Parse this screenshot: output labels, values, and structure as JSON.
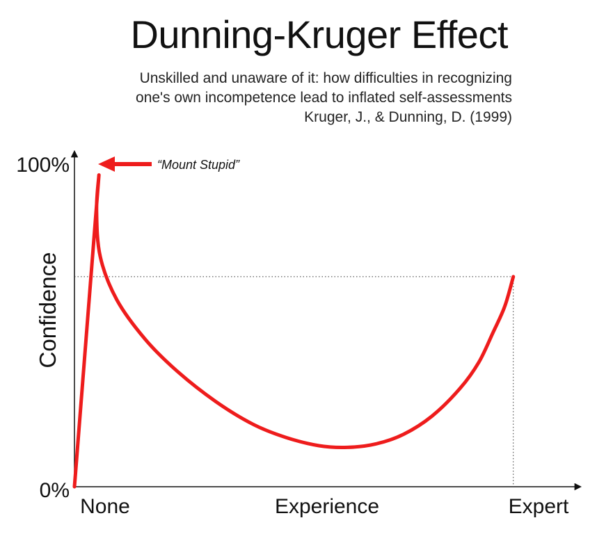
{
  "chart_data": {
    "type": "line",
    "title": "Dunning-Kruger Effect",
    "subtitle_lines": [
      "Unskilled and unaware of it: how difficulties in recognizing",
      "one's own incompetence lead to inflated self-assessments",
      "Kruger, J., & Dunning, D. (1999)"
    ],
    "xlabel": "Experience",
    "ylabel": "Confidence",
    "x_tick_labels": [
      "None",
      "Expert"
    ],
    "y_tick_labels": [
      "100%",
      "0%"
    ],
    "xlim": [
      0,
      100
    ],
    "ylim": [
      0,
      100
    ],
    "series": [
      {
        "name": "Confidence",
        "color": "#ee1c1c",
        "points": [
          [
            0,
            0
          ],
          [
            5.2,
            95
          ],
          [
            4.7,
            84
          ],
          [
            5.5,
            70
          ],
          [
            9,
            57
          ],
          [
            15,
            45
          ],
          [
            22,
            35
          ],
          [
            30,
            26
          ],
          [
            38,
            19
          ],
          [
            45,
            15
          ],
          [
            52,
            12.5
          ],
          [
            58,
            12
          ],
          [
            64,
            13
          ],
          [
            70,
            16
          ],
          [
            76,
            21.5
          ],
          [
            82,
            30
          ],
          [
            86,
            38
          ],
          [
            89,
            47
          ],
          [
            91.5,
            55
          ],
          [
            93.3,
            64
          ]
        ]
      }
    ],
    "reference_point": {
      "x": 93.3,
      "y": 64
    },
    "annotation": {
      "text": "“Mount Stupid”",
      "point": [
        5.2,
        95
      ],
      "color": "#ee1c1c"
    }
  }
}
